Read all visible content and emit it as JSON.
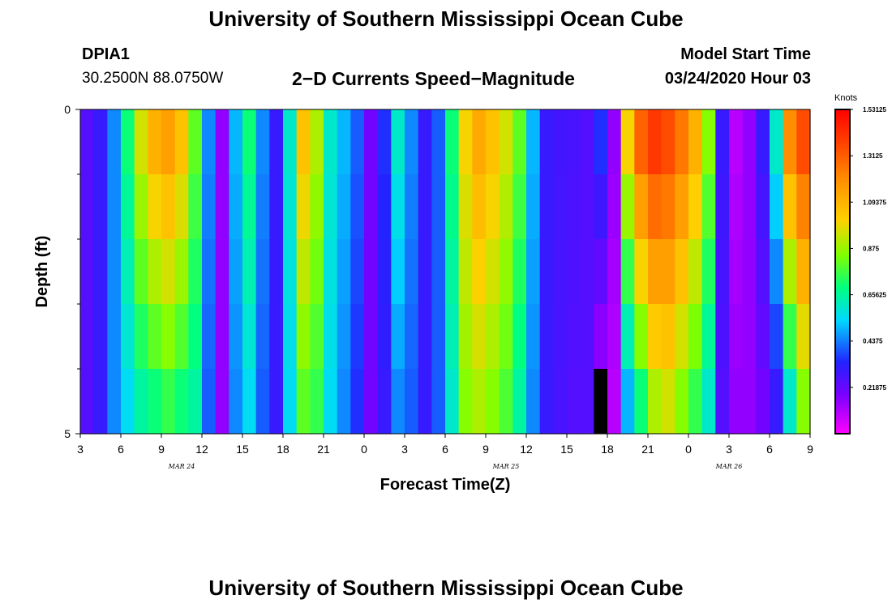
{
  "header": {
    "title": "University of Southern Mississippi Ocean Cube",
    "station_id": "DPIA1",
    "coords": "30.2500N 88.0750W",
    "subtitle": "2−D Currents Speed−Magnitude",
    "model_start_label": "Model Start Time",
    "model_start_value": "03/24/2020 Hour 03"
  },
  "footer": {
    "title": "University of Southern Mississippi Ocean Cube"
  },
  "chart_data": {
    "type": "heatmap",
    "xlabel": "Forecast Time(Z)",
    "ylabel": "Depth (ft)",
    "x_tick_labels": [
      "3",
      "6",
      "9",
      "12",
      "15",
      "18",
      "21",
      "0",
      "3",
      "6",
      "9",
      "12",
      "15",
      "18",
      "21",
      "0",
      "3",
      "6",
      "9"
    ],
    "day_labels": [
      {
        "label": "MAR 24",
        "x_index": 2.5
      },
      {
        "label": "MAR 25",
        "x_index": 10.5
      },
      {
        "label": "MAR 26",
        "x_index": 16.0
      }
    ],
    "y_range": [
      0,
      5
    ],
    "y_tick_labels": [
      "0",
      "5"
    ],
    "y_minor_ticks": [
      1,
      2,
      3,
      4
    ],
    "colorbar": {
      "unit": "Knots",
      "min": 0,
      "max": 1.53125,
      "tick_labels": [
        "1.53125",
        "1.3125",
        "1.09375",
        "0.875",
        "0.65625",
        "0.4375",
        "0.21875"
      ]
    },
    "time_hours": 54,
    "depth_levels": 5,
    "speed_profile": {
      "surface_knots": [
        0.25,
        0.3,
        0.45,
        0.7,
        0.95,
        1.1,
        1.15,
        1.05,
        0.8,
        0.45,
        0.15,
        0.5,
        0.7,
        0.45,
        0.3,
        0.6,
        1.05,
        0.9,
        0.6,
        0.5,
        0.4,
        0.2,
        0.35,
        0.6,
        0.45,
        0.3,
        0.4,
        0.7,
        1.0,
        1.12,
        1.05,
        0.95,
        0.8,
        0.5,
        0.3,
        0.28,
        0.27,
        0.25,
        0.35,
        0.15,
        1.0,
        1.3,
        1.4,
        1.35,
        1.25,
        1.1,
        0.85,
        0.3,
        0.1,
        0.15,
        0.3,
        0.6,
        1.2,
        1.35,
        1.4
      ],
      "bottom_knots": [
        0.25,
        0.3,
        0.45,
        0.55,
        0.65,
        0.7,
        0.75,
        0.7,
        0.65,
        0.4,
        0.15,
        0.45,
        0.55,
        0.4,
        0.3,
        0.55,
        0.8,
        0.75,
        0.55,
        0.45,
        0.35,
        0.2,
        0.3,
        0.45,
        0.4,
        0.3,
        0.4,
        0.6,
        0.85,
        0.9,
        0.85,
        0.78,
        0.65,
        0.45,
        0.3,
        0.27,
        0.25,
        0.25,
        0.1,
        0.1,
        0.5,
        0.7,
        0.9,
        0.95,
        0.85,
        0.75,
        0.6,
        0.25,
        0.15,
        0.15,
        0.2,
        0.3,
        0.6,
        0.85,
        0.95
      ]
    },
    "masked_cell": {
      "hour": 38,
      "depth_level": 4
    }
  }
}
